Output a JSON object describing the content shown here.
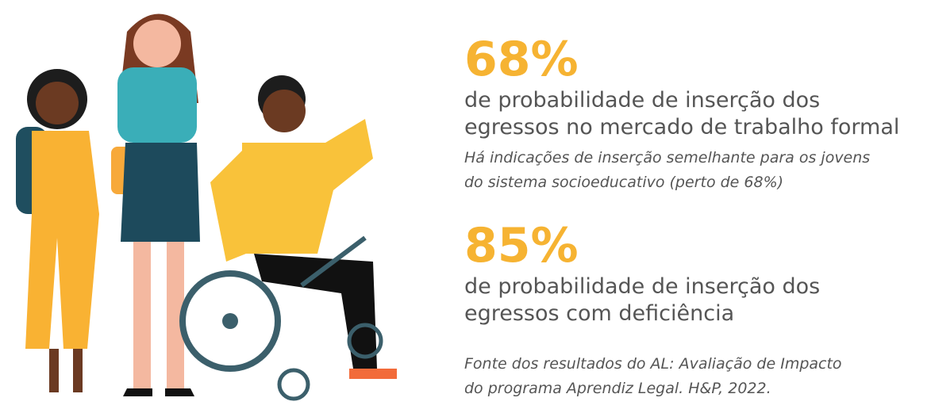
{
  "stats": [
    {
      "value": "68%",
      "description": [
        "de probabilidade de inserção dos",
        "egressos no mercado de trabalho formal"
      ],
      "note": [
        "Há indicações de inserção semelhante para os jovens",
        "do sistema socioeducativo (perto de 68%)"
      ]
    },
    {
      "value": "85%",
      "description": [
        "de probabilidade de inserção dos",
        "egressos com deficiência"
      ]
    }
  ],
  "source": [
    "Fonte dos resultados do AL: Avaliação de Impacto",
    "do programa Aprendiz Legal. H&P, 2022."
  ]
}
